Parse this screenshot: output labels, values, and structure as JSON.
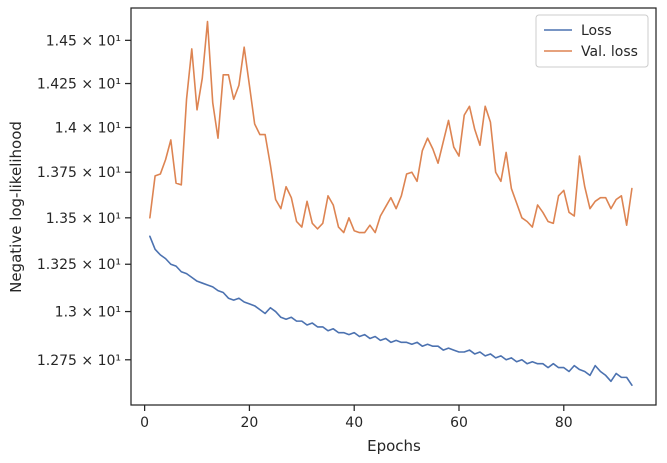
{
  "chart_data": {
    "type": "line",
    "xlabel": "Epochs",
    "ylabel": "Negative log-likelihood",
    "xlim": [
      -2.6,
      97.6
    ],
    "ylim": [
      12.52,
      14.69
    ],
    "y_scale": "log",
    "grid": false,
    "legend_position": "top-right",
    "x_ticks": [
      {
        "value": 0,
        "label": "0"
      },
      {
        "value": 20,
        "label": "20"
      },
      {
        "value": 40,
        "label": "40"
      },
      {
        "value": 60,
        "label": "60"
      },
      {
        "value": 80,
        "label": "80"
      }
    ],
    "y_ticks": [
      {
        "value": 12.75,
        "label": "1.275 × 10¹"
      },
      {
        "value": 13.0,
        "label": "1.3 × 10¹"
      },
      {
        "value": 13.25,
        "label": "1.325 × 10¹"
      },
      {
        "value": 13.5,
        "label": "1.35 × 10¹"
      },
      {
        "value": 13.75,
        "label": "1.375 × 10¹"
      },
      {
        "value": 14.0,
        "label": "1.4 × 10¹"
      },
      {
        "value": 14.25,
        "label": "1.425 × 10¹"
      },
      {
        "value": 14.5,
        "label": "1.45 × 10¹"
      }
    ],
    "x": [
      1,
      2,
      3,
      4,
      5,
      6,
      7,
      8,
      9,
      10,
      11,
      12,
      13,
      14,
      15,
      16,
      17,
      18,
      19,
      20,
      21,
      22,
      23,
      24,
      25,
      26,
      27,
      28,
      29,
      30,
      31,
      32,
      33,
      34,
      35,
      36,
      37,
      38,
      39,
      40,
      41,
      42,
      43,
      44,
      45,
      46,
      47,
      48,
      49,
      50,
      51,
      52,
      53,
      54,
      55,
      56,
      57,
      58,
      59,
      60,
      61,
      62,
      63,
      64,
      65,
      66,
      67,
      68,
      69,
      70,
      71,
      72,
      73,
      74,
      75,
      76,
      77,
      78,
      79,
      80,
      81,
      82,
      83,
      84,
      85,
      86,
      87,
      88,
      89,
      90,
      91,
      92,
      93
    ],
    "series": [
      {
        "name": "Loss",
        "color": "#4c72b0",
        "values": [
          13.4,
          13.33,
          13.3,
          13.28,
          13.25,
          13.24,
          13.21,
          13.2,
          13.18,
          13.16,
          13.15,
          13.14,
          13.13,
          13.11,
          13.1,
          13.07,
          13.06,
          13.07,
          13.05,
          13.04,
          13.03,
          13.01,
          12.99,
          13.02,
          13.0,
          12.97,
          12.96,
          12.97,
          12.95,
          12.95,
          12.93,
          12.94,
          12.92,
          12.92,
          12.9,
          12.91,
          12.89,
          12.89,
          12.88,
          12.89,
          12.87,
          12.88,
          12.86,
          12.87,
          12.85,
          12.86,
          12.84,
          12.85,
          12.84,
          12.84,
          12.83,
          12.84,
          12.82,
          12.83,
          12.82,
          12.82,
          12.8,
          12.81,
          12.8,
          12.79,
          12.79,
          12.8,
          12.78,
          12.79,
          12.77,
          12.78,
          12.76,
          12.77,
          12.75,
          12.76,
          12.74,
          12.75,
          12.73,
          12.74,
          12.73,
          12.73,
          12.71,
          12.73,
          12.71,
          12.71,
          12.69,
          12.72,
          12.7,
          12.69,
          12.67,
          12.72,
          12.69,
          12.67,
          12.64,
          12.68,
          12.66,
          12.66,
          12.62
        ]
      },
      {
        "name": "Val. loss",
        "color": "#dd8452",
        "values": [
          13.5,
          13.73,
          13.74,
          13.82,
          13.93,
          13.69,
          13.68,
          14.16,
          14.45,
          14.1,
          14.28,
          14.61,
          14.14,
          13.94,
          14.3,
          14.3,
          14.16,
          14.24,
          14.46,
          14.24,
          14.02,
          13.96,
          13.96,
          13.79,
          13.6,
          13.55,
          13.67,
          13.61,
          13.48,
          13.45,
          13.59,
          13.47,
          13.44,
          13.47,
          13.62,
          13.57,
          13.45,
          13.42,
          13.5,
          13.43,
          13.42,
          13.42,
          13.46,
          13.42,
          13.51,
          13.56,
          13.61,
          13.55,
          13.62,
          13.74,
          13.75,
          13.7,
          13.87,
          13.94,
          13.88,
          13.8,
          13.92,
          14.04,
          13.89,
          13.84,
          14.07,
          14.12,
          13.99,
          13.9,
          14.12,
          14.03,
          13.75,
          13.7,
          13.86,
          13.66,
          13.58,
          13.5,
          13.48,
          13.45,
          13.57,
          13.53,
          13.48,
          13.47,
          13.62,
          13.65,
          13.53,
          13.51,
          13.84,
          13.67,
          13.55,
          13.59,
          13.61,
          13.61,
          13.55,
          13.6,
          13.62,
          13.46,
          13.66
        ]
      }
    ]
  }
}
